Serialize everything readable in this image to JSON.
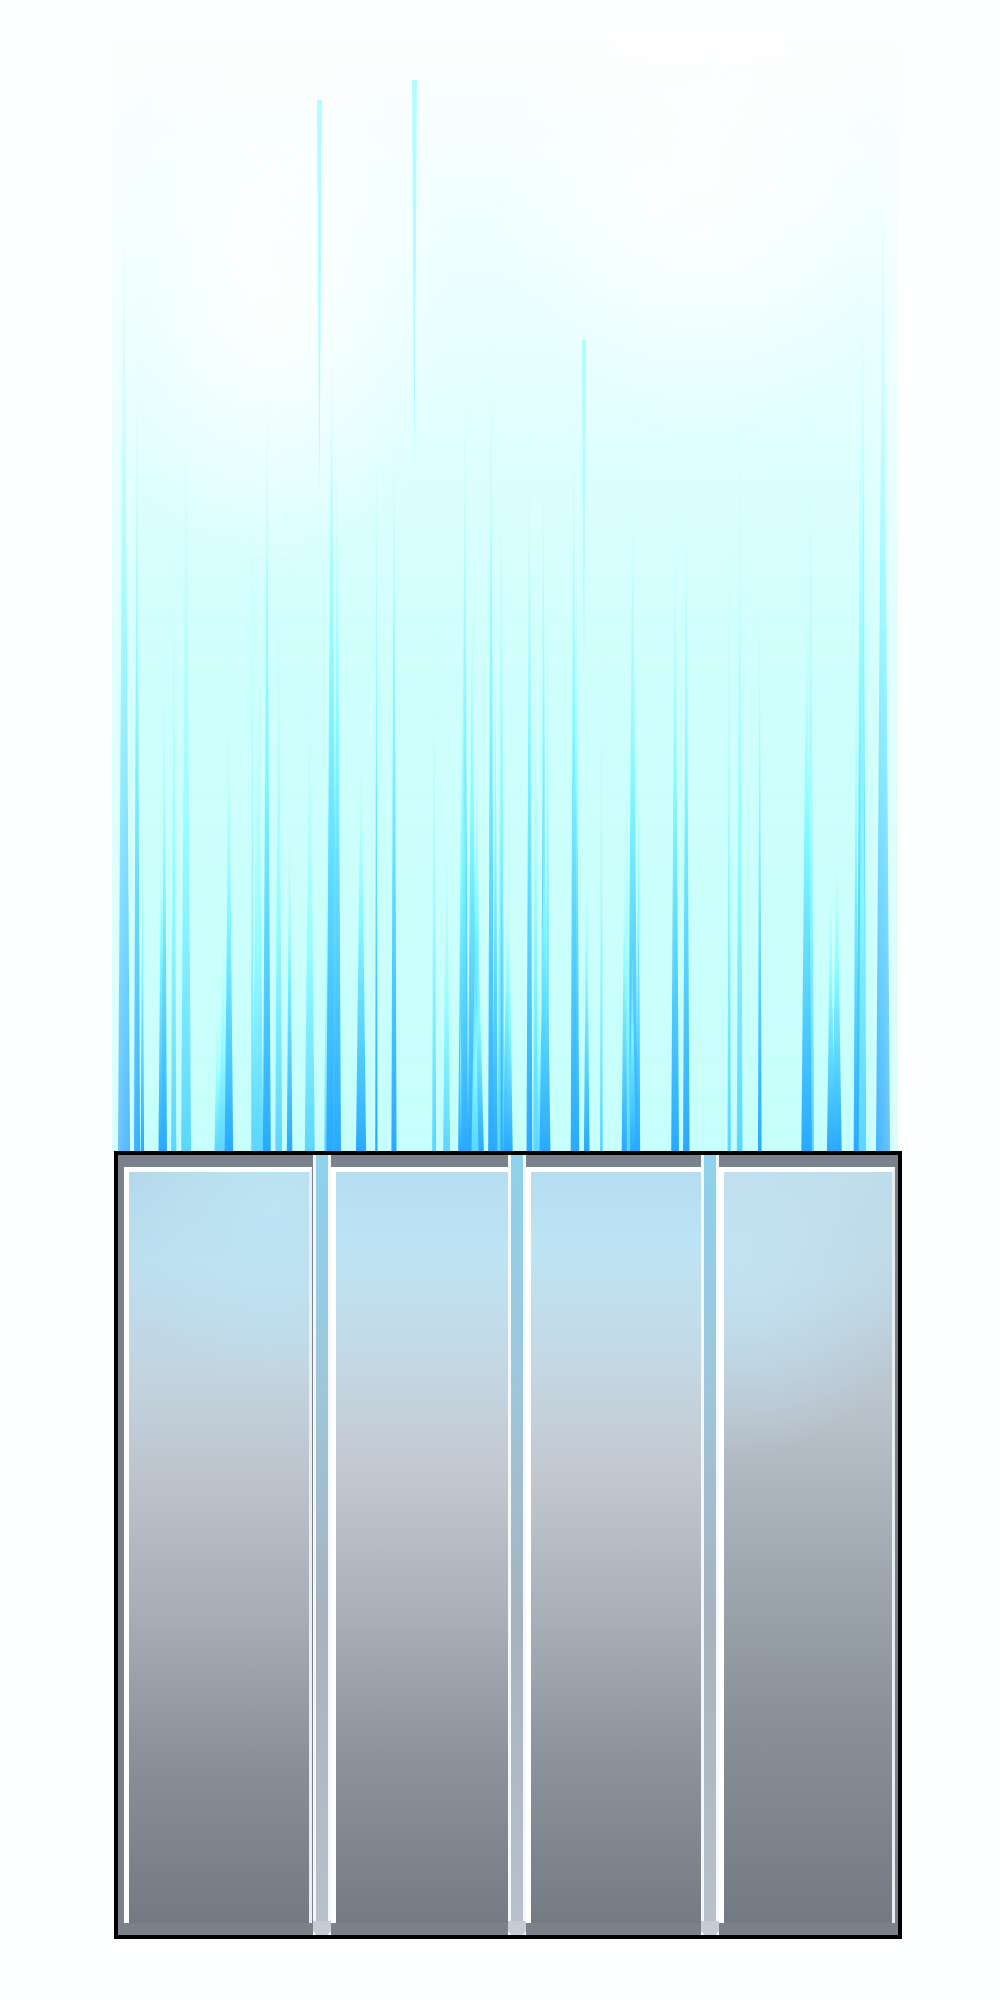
{
  "scene": {
    "beam": {
      "colors": {
        "core": "#ffffff",
        "glow": "#c6fffb",
        "streak_light": "#7ff9ff",
        "streak_dark": "#29a9ff"
      }
    },
    "cage": {
      "border_color": "#000000",
      "panel_top_color": "#b6ddf0",
      "panel_bottom_color": "#747b84",
      "panel_count": 4,
      "bar_count": 3
    }
  }
}
